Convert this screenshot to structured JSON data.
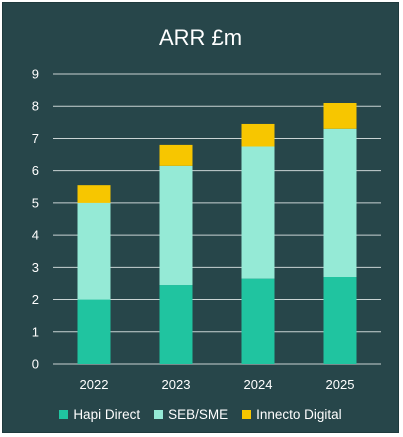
{
  "chart_data": {
    "type": "bar",
    "stacked": true,
    "title": "ARR £m",
    "categories": [
      "2022",
      "2023",
      "2024",
      "2025"
    ],
    "series": [
      {
        "name": "Hapi Direct",
        "values": [
          2.0,
          2.45,
          2.65,
          2.7
        ],
        "color": "#20c4a0"
      },
      {
        "name": "SEB/SME",
        "values": [
          3.0,
          3.7,
          4.1,
          4.6
        ],
        "color": "#95ead6"
      },
      {
        "name": "Innecto Digital",
        "values": [
          0.55,
          0.65,
          0.7,
          0.8
        ],
        "color": "#f7c600"
      }
    ],
    "yticks": [
      "0",
      "1",
      "2",
      "3",
      "4",
      "5",
      "6",
      "7",
      "8",
      "9"
    ],
    "ylim": [
      0,
      9
    ],
    "grid": true,
    "legend_position": "bottom",
    "colors": {
      "background": "#27464a",
      "text": "#ffffff",
      "grid": "#c9d3d3"
    }
  }
}
